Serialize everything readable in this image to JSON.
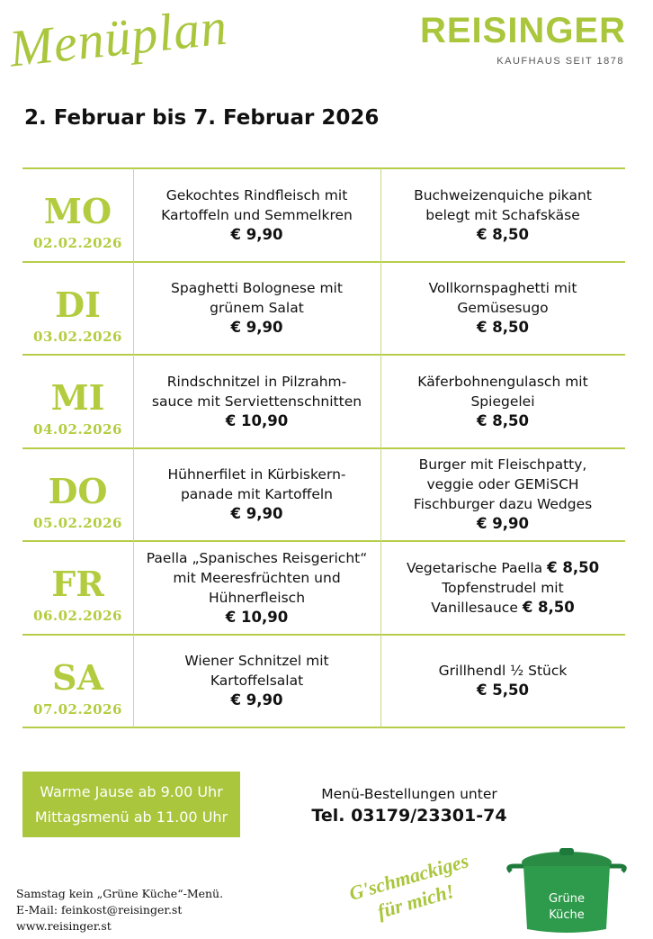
{
  "header": {
    "title": "Menüplan",
    "brand": "REISINGER",
    "tagline": "KAUFHAUS SEIT 1878"
  },
  "date_range": "2. Februar bis 7. Februar 2026",
  "days": [
    {
      "day": "MO",
      "date": "02.02.2026",
      "dishes": [
        {
          "lines": [
            {
              "text": "Gekochtes Rindfleisch mit"
            },
            {
              "text": "Kartoffeln und Semmelkren"
            },
            {
              "price": "€ 9,90"
            }
          ]
        },
        {
          "lines": [
            {
              "text": "Buchweizenquiche pikant"
            },
            {
              "text": "belegt mit Schafskäse"
            },
            {
              "price": "€ 8,50"
            }
          ]
        }
      ]
    },
    {
      "day": "DI",
      "date": "03.02.2026",
      "dishes": [
        {
          "lines": [
            {
              "text": "Spaghetti Bolognese mit"
            },
            {
              "text": "grünem Salat"
            },
            {
              "price": "€ 9,90"
            }
          ]
        },
        {
          "lines": [
            {
              "text": "Vollkornspaghetti mit"
            },
            {
              "text": "Gemüsesugo"
            },
            {
              "price": "€ 8,50"
            }
          ]
        }
      ]
    },
    {
      "day": "MI",
      "date": "04.02.2026",
      "dishes": [
        {
          "lines": [
            {
              "text": "Rindschnitzel in Pilzrahm-"
            },
            {
              "text": "sauce mit Serviettenschnitten"
            },
            {
              "price": "€ 10,90"
            }
          ]
        },
        {
          "lines": [
            {
              "text": "Käferbohnengulasch mit"
            },
            {
              "text": "Spiegelei"
            },
            {
              "price": "€ 8,50"
            }
          ]
        }
      ]
    },
    {
      "day": "DO",
      "date": "05.02.2026",
      "dishes": [
        {
          "lines": [
            {
              "text": "Hühnerfilet in Kürbiskern-"
            },
            {
              "text": "panade mit Kartoffeln"
            },
            {
              "price": "€ 9,90"
            }
          ]
        },
        {
          "lines": [
            {
              "text": "Burger mit Fleischpatty,"
            },
            {
              "text": "veggie oder GEMiSCH"
            },
            {
              "text": "Fischburger dazu Wedges"
            },
            {
              "price": "€ 9,90"
            }
          ]
        }
      ]
    },
    {
      "day": "FR",
      "date": "06.02.2026",
      "dishes": [
        {
          "lines": [
            {
              "text": "Paella „Spanisches Reisgericht“"
            },
            {
              "text": "mit Meeresfrüchten und"
            },
            {
              "text": "Hühnerfleisch"
            },
            {
              "price": "€ 10,90"
            }
          ]
        },
        {
          "lines": [
            {
              "text": "Vegetarische Paella",
              "price": "€ 8,50"
            },
            {
              "text": "Topfenstrudel mit"
            },
            {
              "text": "Vanillesauce",
              "price": "€ 8,50"
            }
          ]
        }
      ]
    },
    {
      "day": "SA",
      "date": "07.02.2026",
      "dishes": [
        {
          "lines": [
            {
              "text": "Wiener Schnitzel mit"
            },
            {
              "text": "Kartoffelsalat"
            },
            {
              "price": "€ 9,90"
            }
          ]
        },
        {
          "lines": [
            {
              "text": "Grillhendl ½ Stück"
            },
            {
              "price": "€ 5,50"
            }
          ]
        }
      ]
    }
  ],
  "hours": [
    "Warme Jause ab 9.00 Uhr",
    "Mittagsmenü ab 11.00 Uhr"
  ],
  "order": {
    "label": "Menü-Bestellungen unter",
    "phone": "Tel. 03179/23301-74"
  },
  "notes": [
    "Samstag kein „Grüne Küche“-Menü.",
    "E-Mail: feinkost@reisinger.st",
    "www.reisinger.st"
  ],
  "slogan": [
    "G'schmackiges",
    "für mich!"
  ],
  "logo": [
    "Grüne",
    "Küche"
  ]
}
